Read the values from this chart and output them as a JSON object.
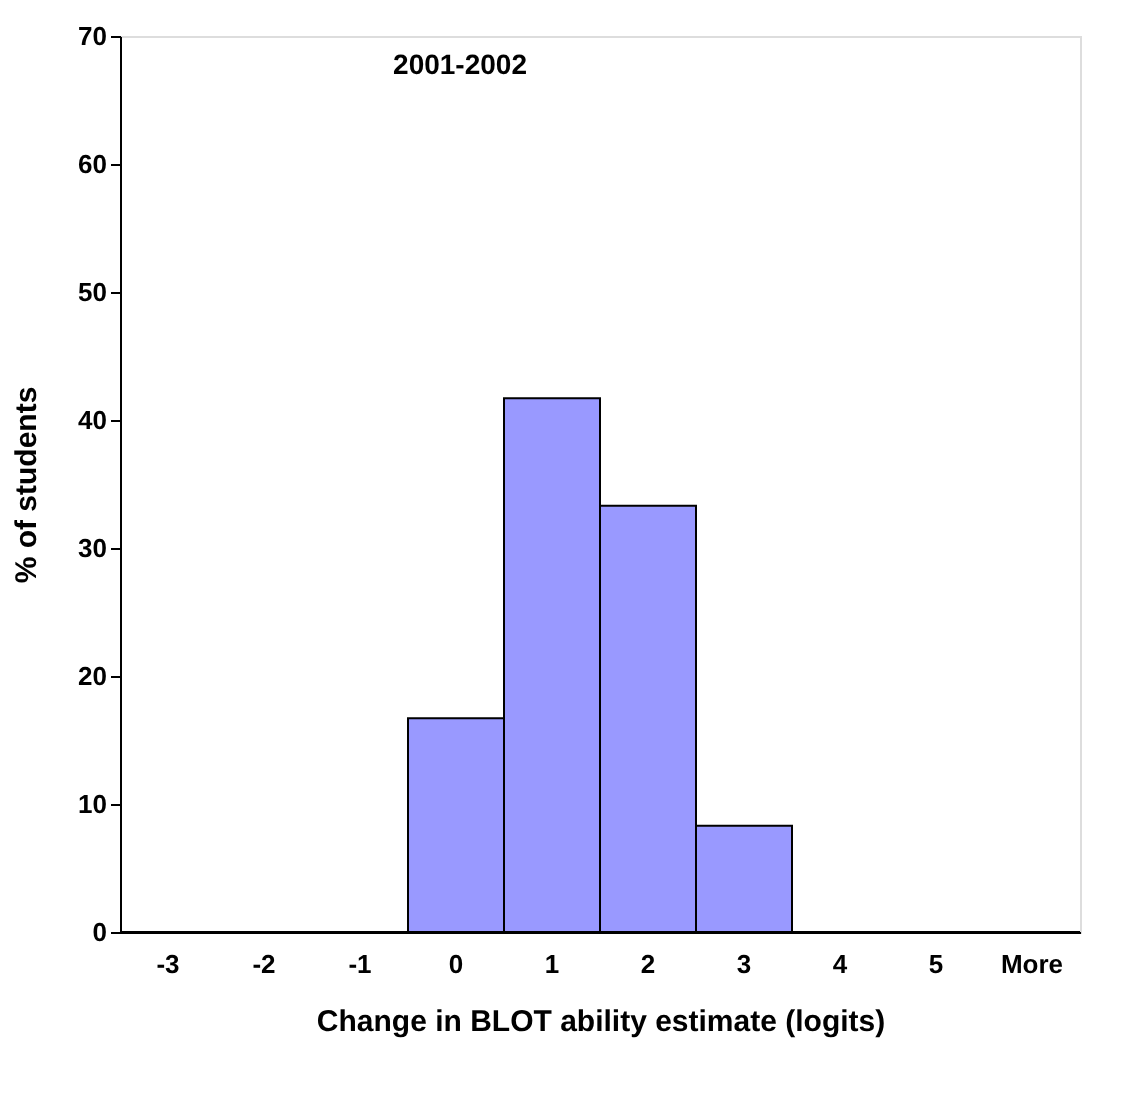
{
  "chart_data": {
    "type": "bar",
    "title": "2001-2002",
    "xlabel": "Change in BLOT ability estimate (logits)",
    "ylabel": "% of students",
    "categories": [
      "-3",
      "-2",
      "-1",
      "0",
      "1",
      "2",
      "3",
      "4",
      "5",
      "More"
    ],
    "values": [
      0,
      0,
      0,
      16.7,
      41.7,
      33.3,
      8.3,
      0,
      0,
      0
    ],
    "color": "#9999ff",
    "ylim": [
      0,
      70
    ],
    "yticks": [
      0,
      10,
      20,
      30,
      40,
      50,
      60,
      70
    ],
    "grid": false
  }
}
